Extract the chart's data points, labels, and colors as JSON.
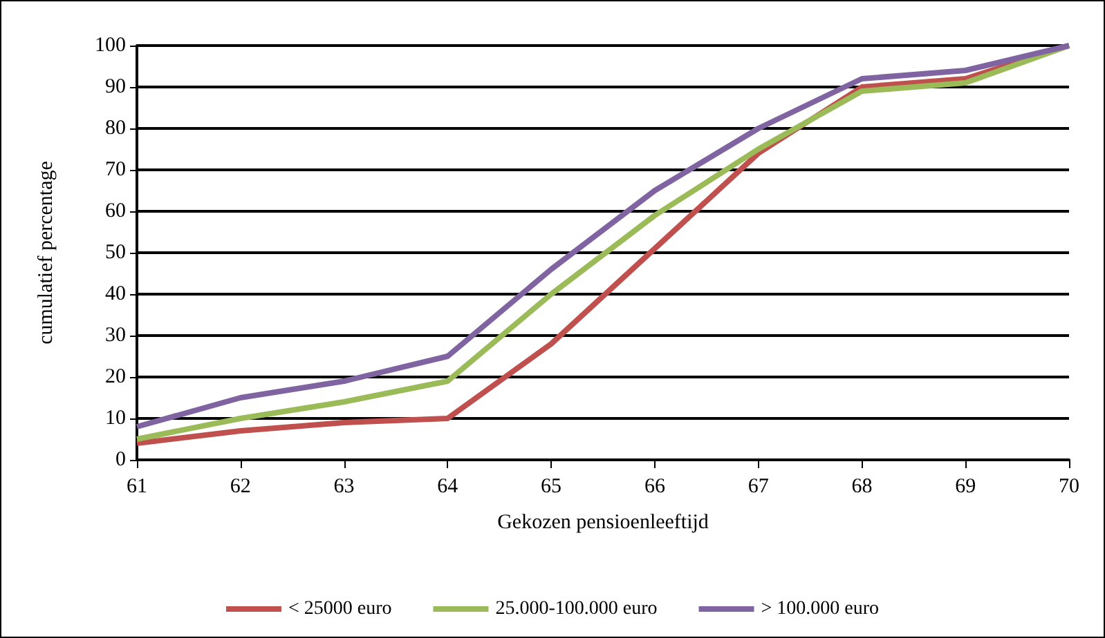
{
  "chart_data": {
    "type": "line",
    "xlabel": "Gekozen pensioenleeftijd",
    "ylabel": "cumulatief percentage",
    "categories": [
      "61",
      "62",
      "63",
      "64",
      "65",
      "66",
      "67",
      "68",
      "69",
      "70"
    ],
    "series": [
      {
        "name": "< 25000 euro",
        "color": "#c0504d",
        "values": [
          4,
          7,
          9,
          10,
          28,
          51,
          74,
          90,
          92,
          100
        ]
      },
      {
        "name": "25.000-100.000 euro",
        "color": "#9bbb59",
        "values": [
          5,
          10,
          14,
          19,
          40,
          59,
          75,
          89,
          91,
          100
        ]
      },
      {
        "name": "> 100.000 euro",
        "color": "#8064a2",
        "values": [
          8,
          15,
          19,
          25,
          46,
          65,
          80,
          92,
          94,
          100
        ]
      }
    ],
    "ylim": [
      0,
      100
    ],
    "yticks": [
      0,
      10,
      20,
      30,
      40,
      50,
      60,
      70,
      80,
      90,
      100
    ],
    "grid": "y",
    "legend": "bottom",
    "marker": "none",
    "line_style": "solid"
  }
}
